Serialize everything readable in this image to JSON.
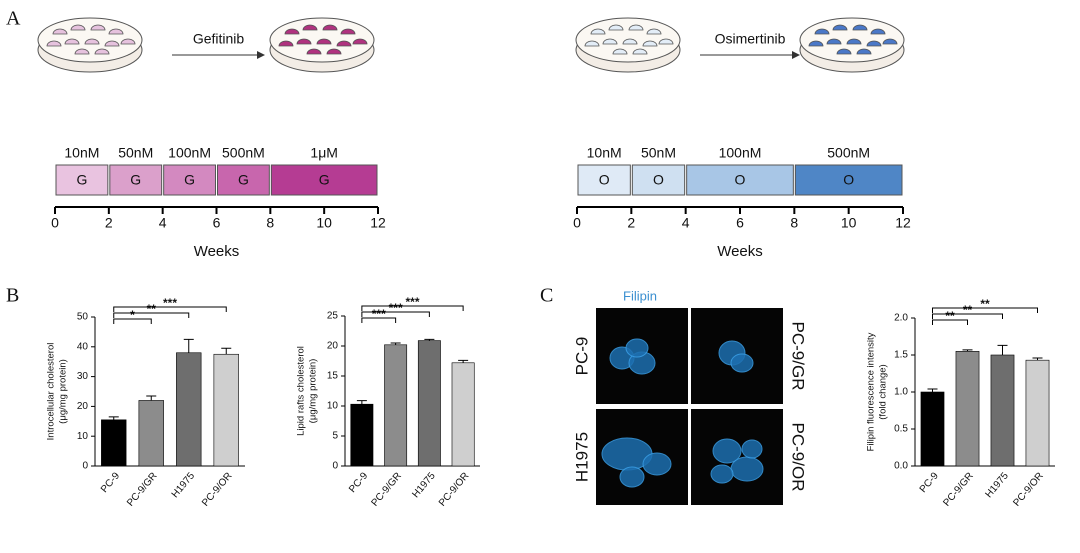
{
  "panels": [
    "A",
    "B",
    "C"
  ],
  "timelines": [
    {
      "treatment": "Gefitinib",
      "xlabel": "Weeks",
      "xlim": [
        0,
        12
      ],
      "xticks": [
        0,
        2,
        4,
        6,
        8,
        10,
        12
      ],
      "segments": [
        {
          "dose": "10nM",
          "label": "G",
          "start": 0,
          "end": 2,
          "color": "#e9c3e0"
        },
        {
          "dose": "50nM",
          "label": "G",
          "start": 2,
          "end": 4,
          "color": "#dba0cb"
        },
        {
          "dose": "100nM",
          "label": "G",
          "start": 4,
          "end": 6,
          "color": "#d389c0"
        },
        {
          "dose": "500nM",
          "label": "G",
          "start": 6,
          "end": 8,
          "color": "#c866ad"
        },
        {
          "dose": "1μM",
          "label": "G",
          "start": 8,
          "end": 12,
          "color": "#b53c93"
        }
      ],
      "dish_colors": [
        "#e6c2de",
        "#b0327f"
      ]
    },
    {
      "treatment": "Osimertinib",
      "xlabel": "Weeks",
      "xlim": [
        0,
        12
      ],
      "xticks": [
        0,
        2,
        4,
        6,
        8,
        10,
        12
      ],
      "segments": [
        {
          "dose": "10nM",
          "label": "O",
          "start": 0,
          "end": 2,
          "color": "#dfeaf6"
        },
        {
          "dose": "50nM",
          "label": "O",
          "start": 2,
          "end": 4,
          "color": "#cfe0f1"
        },
        {
          "dose": "100nM",
          "label": "O",
          "start": 4,
          "end": 8,
          "color": "#a8c6e6"
        },
        {
          "dose": "500nM",
          "label": "O",
          "start": 8,
          "end": 12,
          "color": "#4f86c6"
        }
      ],
      "dish_colors": [
        "#e3edf7",
        "#4a78c8"
      ]
    }
  ],
  "microscopy": {
    "title": "Filipin",
    "labels": [
      "PC-9",
      "PC-9/GR",
      "H1975",
      "PC-9/OR"
    ]
  },
  "chart_data": [
    {
      "type": "bar",
      "ylabel": [
        "Introcellular cholesterol",
        "(μg/mg protein)"
      ],
      "categories": [
        "PC-9",
        "PC-9/GR",
        "H1975",
        "PC-9/OR"
      ],
      "values": [
        15.5,
        22,
        38,
        37.5
      ],
      "errors": [
        1,
        1.5,
        4.5,
        2
      ],
      "colors": [
        "#000000",
        "#8c8c8c",
        "#6e6e6e",
        "#cfcfcf"
      ],
      "ylim": [
        0,
        50
      ],
      "yticks": [
        0,
        10,
        20,
        30,
        40,
        50
      ],
      "annotations": [
        {
          "from": 0,
          "to": 1,
          "label": "*"
        },
        {
          "from": 0,
          "to": 2,
          "label": "**"
        },
        {
          "from": 0,
          "to": 3,
          "label": "***"
        }
      ]
    },
    {
      "type": "bar",
      "ylabel": [
        "Lipid rafts cholesterol",
        "(μg/mg protein)"
      ],
      "categories": [
        "PC-9",
        "PC-9/GR",
        "H1975",
        "PC-9/OR"
      ],
      "values": [
        10.3,
        20.2,
        20.9,
        17.2
      ],
      "errors": [
        0.6,
        0.3,
        0.2,
        0.4
      ],
      "colors": [
        "#000000",
        "#8c8c8c",
        "#6e6e6e",
        "#cfcfcf"
      ],
      "ylim": [
        0,
        25
      ],
      "yticks": [
        0,
        5,
        10,
        15,
        20,
        25
      ],
      "annotations": [
        {
          "from": 0,
          "to": 1,
          "label": "***"
        },
        {
          "from": 0,
          "to": 2,
          "label": "***"
        },
        {
          "from": 0,
          "to": 3,
          "label": "***"
        }
      ]
    },
    {
      "type": "bar",
      "ylabel": [
        "Filipin fluorescence intensity",
        "(fold change)"
      ],
      "categories": [
        "PC-9",
        "PC-9/GR",
        "H1975",
        "PC-9/OR"
      ],
      "values": [
        1.0,
        1.55,
        1.5,
        1.43
      ],
      "errors": [
        0.04,
        0.02,
        0.13,
        0.03
      ],
      "colors": [
        "#000000",
        "#8c8c8c",
        "#6e6e6e",
        "#cfcfcf"
      ],
      "ylim": [
        0,
        2
      ],
      "yticks": [
        {
          "value": 0,
          "label": "0.0"
        },
        {
          "value": 0.5,
          "label": "0.5"
        },
        {
          "value": 1,
          "label": "1.0"
        },
        {
          "value": 1.5,
          "label": "1.5"
        },
        {
          "value": 2,
          "label": "2.0"
        }
      ],
      "annotations": [
        {
          "from": 0,
          "to": 1,
          "label": "**"
        },
        {
          "from": 0,
          "to": 2,
          "label": "**"
        },
        {
          "from": 0,
          "to": 3,
          "label": "**"
        }
      ]
    }
  ]
}
